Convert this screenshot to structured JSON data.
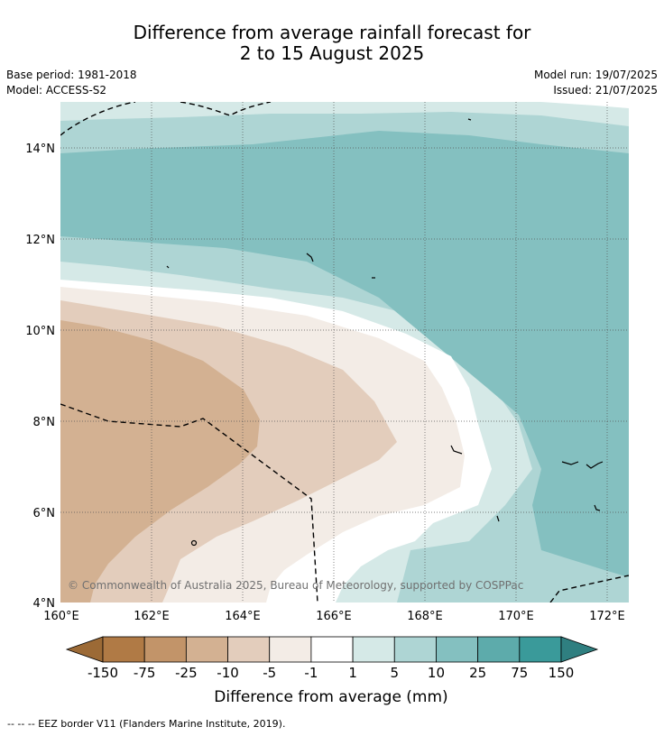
{
  "title_line1": "Difference from average rainfall forecast for",
  "title_line2": "2 to 15 August 2025",
  "base_period": "Base period: 1981-2018",
  "model": "Model: ACCESS-S2",
  "model_run": "Model run: 19/07/2025",
  "issued": "Issued: 21/07/2025",
  "copyright": "© Commonwealth of Australia 2025, Bureau of Meteorology, supported by COSPPac",
  "footer_note": "-- -- -- EEZ border V11 (Flanders Marine Institute, 2019).",
  "lat_labels": [
    "14°N",
    "12°N",
    "10°N",
    "8°N",
    "6°N",
    "4°N"
  ],
  "lon_labels": [
    "160°E",
    "162°E",
    "164°E",
    "166°E",
    "168°E",
    "170°E",
    "172°E"
  ],
  "colorbar": {
    "label": "Difference from average (mm)",
    "ticks": [
      "-150",
      "-75",
      "-25",
      "-10",
      "-5",
      "-1",
      "1",
      "5",
      "10",
      "25",
      "75",
      "150"
    ],
    "colors": [
      "#9c6a36",
      "#b07a45",
      "#c29469",
      "#d3b192",
      "#e3cdbc",
      "#f3ece6",
      "#ffffff",
      "#d5e9e7",
      "#aed5d4",
      "#84c0c0",
      "#5dabab",
      "#3a9a9a",
      "#2f7f80"
    ]
  }
}
